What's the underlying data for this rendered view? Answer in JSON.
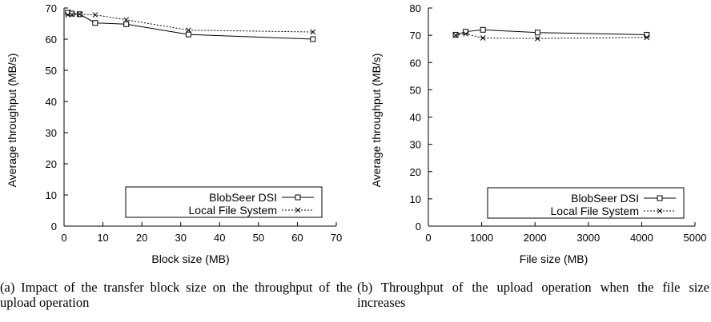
{
  "chart_data": [
    {
      "type": "line",
      "xlabel": "Block size (MB)",
      "ylabel": "Average throughput (MB/s)",
      "xlim": [
        0,
        70
      ],
      "ylim": [
        0,
        70
      ],
      "xticks": [
        0,
        10,
        20,
        30,
        40,
        50,
        60,
        70
      ],
      "yticks": [
        0,
        10,
        20,
        30,
        40,
        50,
        60,
        70
      ],
      "legend_position": "bottom-right",
      "series": [
        {
          "name": "BlobSeer DSI",
          "marker": "square",
          "dash": "solid",
          "x": [
            1,
            2,
            4,
            8,
            16,
            32,
            64
          ],
          "y": [
            68.5,
            68.2,
            68.0,
            65.2,
            64.8,
            61.5,
            60.0
          ]
        },
        {
          "name": "Local File System",
          "marker": "x",
          "dash": "dotted",
          "x": [
            1,
            2,
            4,
            8,
            16,
            32,
            64
          ],
          "y": [
            67.8,
            67.9,
            68.0,
            67.8,
            66.2,
            62.9,
            62.3
          ]
        }
      ]
    },
    {
      "type": "line",
      "xlabel": "File size (MB)",
      "ylabel": "Average throughput (MB/s)",
      "xlim": [
        0,
        5000
      ],
      "ylim": [
        0,
        80
      ],
      "xticks": [
        0,
        1000,
        2000,
        3000,
        4000,
        5000
      ],
      "yticks": [
        0,
        10,
        20,
        30,
        40,
        50,
        60,
        70,
        80
      ],
      "legend_position": "bottom-right",
      "series": [
        {
          "name": "BlobSeer DSI",
          "marker": "square",
          "dash": "solid",
          "x": [
            512,
            700,
            1024,
            2048,
            4096
          ],
          "y": [
            70.2,
            71.3,
            72.0,
            71.0,
            70.2
          ]
        },
        {
          "name": "Local File System",
          "marker": "x",
          "dash": "dotted",
          "x": [
            512,
            700,
            1024,
            2048,
            4096
          ],
          "y": [
            70.0,
            70.5,
            69.0,
            68.8,
            69.2
          ]
        }
      ]
    }
  ],
  "captions": {
    "a": "(a) Impact of the transfer block size on the throughput of the upload operation",
    "b": "(b) Throughput of the upload operation when the file size increases"
  }
}
